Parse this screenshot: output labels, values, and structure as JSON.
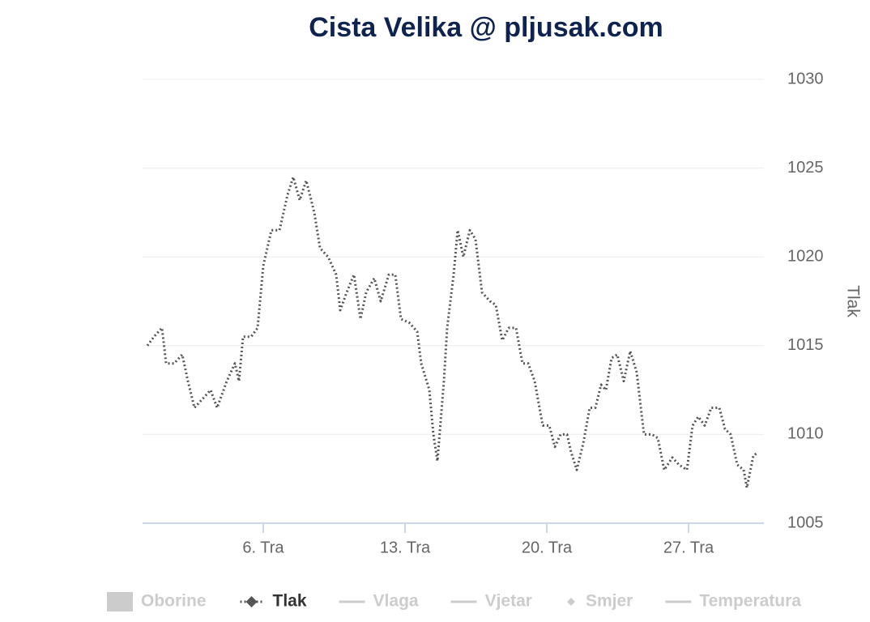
{
  "chart_data": {
    "type": "line",
    "title": "Cista Velika @ pljusak.com",
    "y_axis_label": "Tlak",
    "xlim": [
      0.04,
      30.72
    ],
    "xticks": [
      {
        "value": 6,
        "label": "6. Tra"
      },
      {
        "value": 13,
        "label": "13. Tra"
      },
      {
        "value": 20,
        "label": "20. Tra"
      },
      {
        "value": 27,
        "label": "27. Tra"
      }
    ],
    "ylim": [
      1005,
      1030
    ],
    "yticks": [
      1005,
      1010,
      1015,
      1020,
      1025,
      1030
    ],
    "grid": true,
    "series": [
      {
        "name": "Tlak",
        "color": "#555555",
        "x": [
          0.28,
          0.6,
          1.0,
          1.2,
          1.6,
          2.0,
          2.28,
          2.6,
          3.0,
          3.4,
          3.72,
          4.2,
          4.6,
          4.8,
          5.0,
          5.4,
          5.72,
          6.0,
          6.4,
          6.8,
          7.2,
          7.48,
          7.8,
          8.12,
          8.52,
          8.8,
          9.2,
          9.6,
          9.8,
          10.12,
          10.48,
          10.8,
          11.08,
          11.48,
          11.8,
          12.2,
          12.52,
          12.8,
          13.2,
          13.6,
          13.8,
          14.2,
          14.4,
          14.6,
          14.92,
          15.08,
          15.4,
          15.6,
          15.88,
          16.2,
          16.48,
          16.8,
          17.2,
          17.48,
          17.8,
          18.12,
          18.48,
          18.8,
          19.08,
          19.4,
          19.8,
          20.12,
          20.4,
          20.68,
          21.0,
          21.2,
          21.48,
          21.8,
          22.12,
          22.4,
          22.68,
          22.92,
          23.2,
          23.48,
          23.8,
          24.12,
          24.44,
          24.8,
          25.2,
          25.48,
          25.8,
          26.2,
          26.52,
          26.92,
          27.2,
          27.48,
          27.8,
          28.12,
          28.52,
          28.8,
          29.08,
          29.4,
          29.72,
          29.88,
          30.2,
          30.44
        ],
        "values": [
          1015,
          1015.5,
          1016,
          1014,
          1014,
          1014.5,
          1013,
          1011.5,
          1012,
          1012.5,
          1011.5,
          1013,
          1014,
          1013,
          1015.5,
          1015.5,
          1016,
          1019.5,
          1021.5,
          1021.5,
          1023.5,
          1024.5,
          1023.2,
          1024.3,
          1022.5,
          1020.5,
          1020,
          1019,
          1017,
          1018,
          1019,
          1016.5,
          1018,
          1018.8,
          1017.5,
          1019,
          1019,
          1016.5,
          1016.3,
          1015.8,
          1014,
          1012.5,
          1010,
          1008.5,
          1013,
          1016,
          1019,
          1021.5,
          1020,
          1021.5,
          1021,
          1018,
          1017.5,
          1017.3,
          1015.3,
          1016,
          1016,
          1014,
          1014,
          1013,
          1010.5,
          1010.5,
          1009.3,
          1010,
          1010,
          1009,
          1008,
          1009.5,
          1011.5,
          1011.5,
          1012.8,
          1012.5,
          1014.3,
          1014.5,
          1013,
          1014.7,
          1013.5,
          1010,
          1010,
          1009.8,
          1008,
          1008.7,
          1008.3,
          1008,
          1010.5,
          1011,
          1010.5,
          1011.5,
          1011.5,
          1010.3,
          1010,
          1008.3,
          1008,
          1007,
          1008.8,
          1009
        ]
      }
    ],
    "hidden_series": [
      {
        "name": "Oborine",
        "symbol": "area"
      },
      {
        "name": "Vlaga",
        "symbol": "line"
      },
      {
        "name": "Vjetar",
        "symbol": "line"
      },
      {
        "name": "Smjer",
        "symbol": "diamond"
      },
      {
        "name": "Temperatura",
        "symbol": "line"
      }
    ]
  }
}
